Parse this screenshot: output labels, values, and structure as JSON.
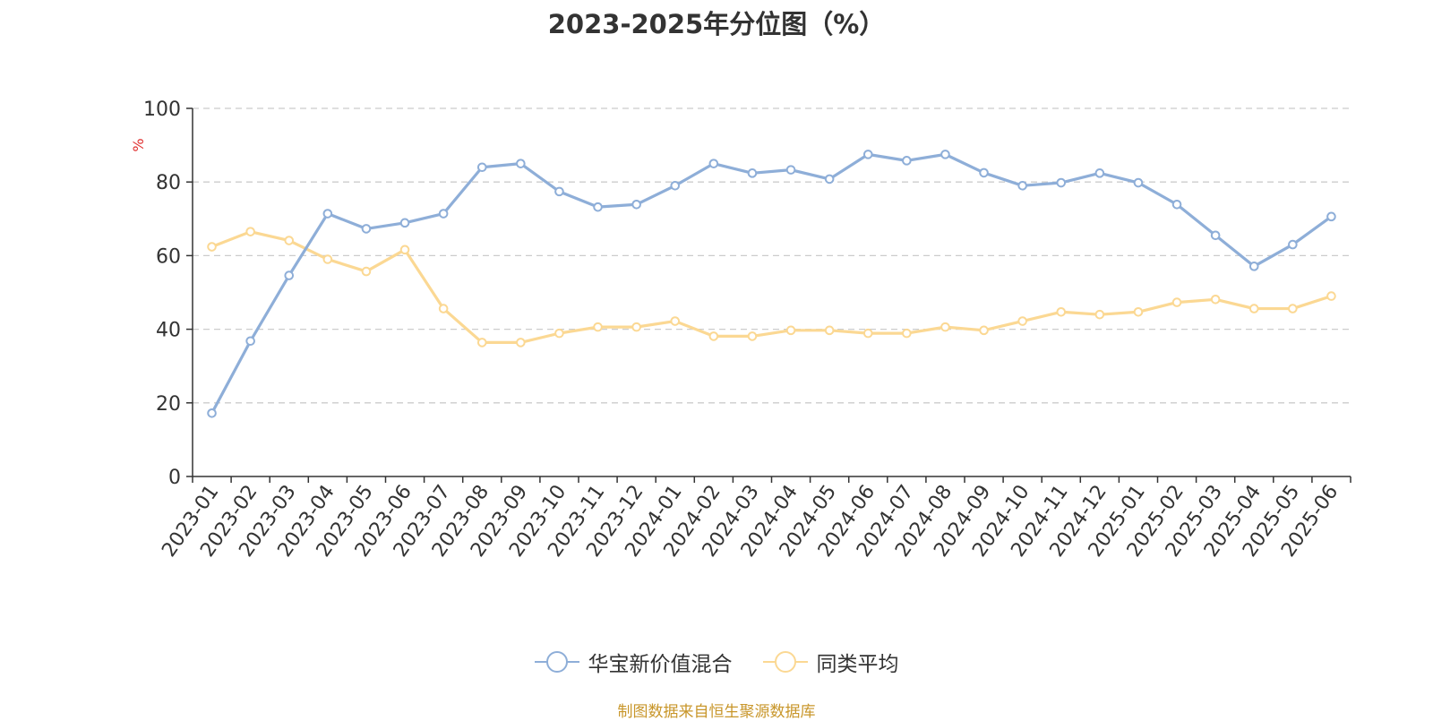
{
  "chart_data": {
    "type": "line",
    "title": "2023-2025年分位图（%）",
    "ylabel": "%",
    "ylim": [
      0,
      100
    ],
    "yticks": [
      0,
      20,
      40,
      60,
      80,
      100
    ],
    "grid": "horizontal dashed",
    "legend_position": "bottom",
    "categories": [
      "2023-01",
      "2023-02",
      "2023-03",
      "2023-04",
      "2023-05",
      "2023-06",
      "2023-07",
      "2023-08",
      "2023-09",
      "2023-10",
      "2023-11",
      "2023-12",
      "2024-01",
      "2024-02",
      "2024-03",
      "2024-04",
      "2024-05",
      "2024-06",
      "2024-07",
      "2024-08",
      "2024-09",
      "2024-10",
      "2024-11",
      "2024-12",
      "2025-01",
      "2025-02",
      "2025-03",
      "2025-04",
      "2025-05",
      "2025-06"
    ],
    "series": [
      {
        "name": "华宝新价值混合",
        "color": "#8eaed8",
        "values": [
          17.2,
          36.8,
          54.6,
          71.4,
          67.3,
          68.9,
          71.4,
          84.0,
          85.0,
          77.4,
          73.2,
          73.9,
          79.0,
          85.0,
          82.4,
          83.3,
          80.8,
          87.5,
          85.8,
          87.5,
          82.5,
          79.0,
          79.8,
          82.4,
          79.8,
          73.9,
          65.5,
          57.1,
          63.0,
          70.6
        ]
      },
      {
        "name": "同类平均",
        "color": "#fbd893",
        "values": [
          62.4,
          66.5,
          64.1,
          59.0,
          55.7,
          61.6,
          45.6,
          36.4,
          36.4,
          38.9,
          40.6,
          40.6,
          42.2,
          38.1,
          38.1,
          39.7,
          39.7,
          38.9,
          38.9,
          40.6,
          39.7,
          42.2,
          44.7,
          44.0,
          44.7,
          47.3,
          48.1,
          45.6,
          45.6,
          49.0
        ]
      }
    ]
  },
  "source_text": "制图数据来自恒生聚源数据库"
}
